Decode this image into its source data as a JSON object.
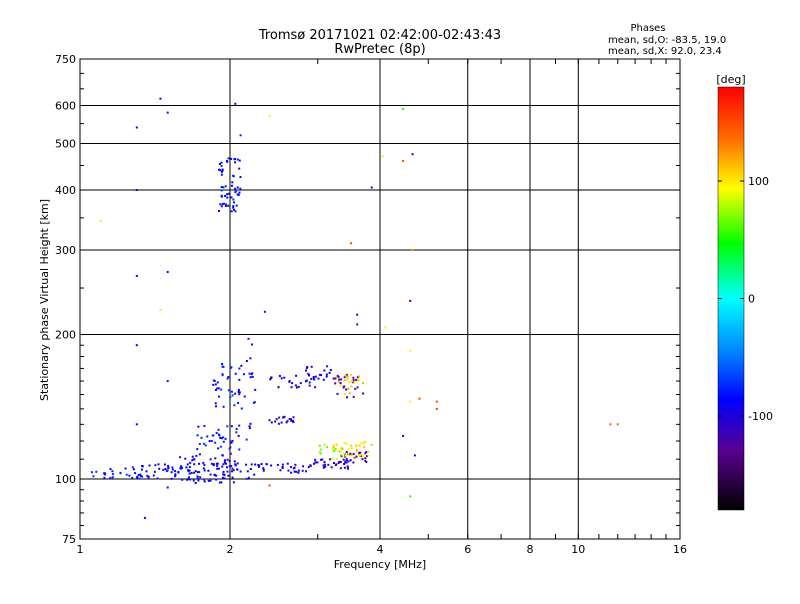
{
  "chart_data": {
    "type": "scatter",
    "title": "Tromsø 20171021 02:42:00-02:43:43",
    "subtitle": "RwPretec (8p)",
    "xlabel": "Frequency [MHz]",
    "ylabel": "Stationary phase Virtual Height [km]",
    "xscale": "log",
    "yscale": "log",
    "xlim": [
      1,
      16
    ],
    "ylim": [
      75,
      750
    ],
    "x_ticks": [
      1,
      2,
      4,
      6,
      8,
      10,
      16
    ],
    "y_ticks": [
      75,
      100,
      200,
      300,
      400,
      500,
      600,
      750
    ],
    "grid": true,
    "stats": {
      "heading": "Phases",
      "line1": "mean, sd,O: -83.5, 19.0",
      "line2": "mean, sd,X:  92.0, 23.4"
    },
    "colorbar": {
      "label": "[deg]",
      "range": [
        -180,
        180
      ],
      "ticks": [
        100,
        0,
        -100
      ],
      "colormap": "rainbow"
    },
    "clusters": [
      {
        "f": [
          1.55,
          2.05
        ],
        "h": [
          98,
          112
        ],
        "phase": -95,
        "count": 90
      },
      {
        "f": [
          1.3,
          1.6
        ],
        "h": [
          100,
          108
        ],
        "phase": -90,
        "count": 40
      },
      {
        "f": [
          1.05,
          1.3
        ],
        "h": [
          100,
          106
        ],
        "phase": -85,
        "count": 20
      },
      {
        "f": [
          2.05,
          2.9
        ],
        "h": [
          103,
          108
        ],
        "phase": -100,
        "count": 40
      },
      {
        "f": [
          2.9,
          3.5
        ],
        "h": [
          105,
          110
        ],
        "phase": -110,
        "count": 30
      },
      {
        "f": [
          3.3,
          3.8
        ],
        "h": [
          108,
          115
        ],
        "phase": -120,
        "count": 30
      },
      {
        "f": [
          3.2,
          3.9
        ],
        "h": [
          110,
          120
        ],
        "phase": 100,
        "count": 40
      },
      {
        "f": [
          3.0,
          3.4
        ],
        "h": [
          112,
          118
        ],
        "phase": 70,
        "count": 10
      },
      {
        "f": [
          1.7,
          2.1
        ],
        "h": [
          112,
          130
        ],
        "phase": -85,
        "count": 40
      },
      {
        "f": [
          2.4,
          2.7
        ],
        "h": [
          130,
          135
        ],
        "phase": -105,
        "count": 20
      },
      {
        "f": [
          1.85,
          2.15
        ],
        "h": [
          140,
          175
        ],
        "phase": -85,
        "count": 40
      },
      {
        "f": [
          2.4,
          3.0
        ],
        "h": [
          155,
          165
        ],
        "phase": -100,
        "count": 25
      },
      {
        "f": [
          2.8,
          3.2
        ],
        "h": [
          160,
          172
        ],
        "phase": -105,
        "count": 20
      },
      {
        "f": [
          3.2,
          3.7
        ],
        "h": [
          148,
          165
        ],
        "phase": -125,
        "count": 25
      },
      {
        "f": [
          3.3,
          3.7
        ],
        "h": [
          150,
          165
        ],
        "phase": 110,
        "count": 20
      },
      {
        "f": [
          1.9,
          2.1
        ],
        "h": [
          360,
          470
        ],
        "phase": -85,
        "count": 60
      },
      {
        "f": [
          2.15,
          2.25
        ],
        "h": [
          100,
          200
        ],
        "phase": -90,
        "count": 20
      }
    ],
    "outliers": [
      {
        "f": 1.3,
        "h": 400,
        "phase": -100
      },
      {
        "f": 1.45,
        "h": 620,
        "phase": -100
      },
      {
        "f": 1.3,
        "h": 540,
        "phase": -100
      },
      {
        "f": 1.5,
        "h": 580,
        "phase": -110
      },
      {
        "f": 1.3,
        "h": 265,
        "phase": -90
      },
      {
        "f": 1.5,
        "h": 270,
        "phase": -110
      },
      {
        "f": 1.3,
        "h": 190,
        "phase": -95
      },
      {
        "f": 1.5,
        "h": 160,
        "phase": -110
      },
      {
        "f": 1.3,
        "h": 130,
        "phase": -90
      },
      {
        "f": 1.45,
        "h": 225,
        "phase": 100
      },
      {
        "f": 1.1,
        "h": 345,
        "phase": 100
      },
      {
        "f": 2.05,
        "h": 605,
        "phase": -100
      },
      {
        "f": 2.1,
        "h": 520,
        "phase": -80
      },
      {
        "f": 2.4,
        "h": 570,
        "phase": 100
      },
      {
        "f": 2.35,
        "h": 223,
        "phase": -120
      },
      {
        "f": 3.5,
        "h": 310,
        "phase": 150
      },
      {
        "f": 3.85,
        "h": 405,
        "phase": -110
      },
      {
        "f": 4.45,
        "h": 590,
        "phase": 50
      },
      {
        "f": 4.65,
        "h": 475,
        "phase": -100
      },
      {
        "f": 4.45,
        "h": 460,
        "phase": 150
      },
      {
        "f": 4.05,
        "h": 470,
        "phase": 100
      },
      {
        "f": 4.65,
        "h": 300,
        "phase": 120
      },
      {
        "f": 4.6,
        "h": 235,
        "phase": -100
      },
      {
        "f": 4.1,
        "h": 207,
        "phase": 100
      },
      {
        "f": 3.6,
        "h": 220,
        "phase": -110
      },
      {
        "f": 3.6,
        "h": 210,
        "phase": -130
      },
      {
        "f": 4.6,
        "h": 185,
        "phase": 100
      },
      {
        "f": 4.6,
        "h": 145,
        "phase": 100
      },
      {
        "f": 5.2,
        "h": 145,
        "phase": 150
      },
      {
        "f": 5.2,
        "h": 140,
        "phase": 160
      },
      {
        "f": 4.8,
        "h": 147,
        "phase": 150
      },
      {
        "f": 4.45,
        "h": 123,
        "phase": -90
      },
      {
        "f": 4.7,
        "h": 112,
        "phase": -100
      },
      {
        "f": 4.6,
        "h": 92,
        "phase": 50
      },
      {
        "f": 1.35,
        "h": 83,
        "phase": -90
      },
      {
        "f": 1.5,
        "h": 96,
        "phase": -100
      },
      {
        "f": 2.4,
        "h": 97,
        "phase": 150
      },
      {
        "f": 11.6,
        "h": 130,
        "phase": 140
      },
      {
        "f": 12.0,
        "h": 130,
        "phase": 140
      }
    ]
  }
}
